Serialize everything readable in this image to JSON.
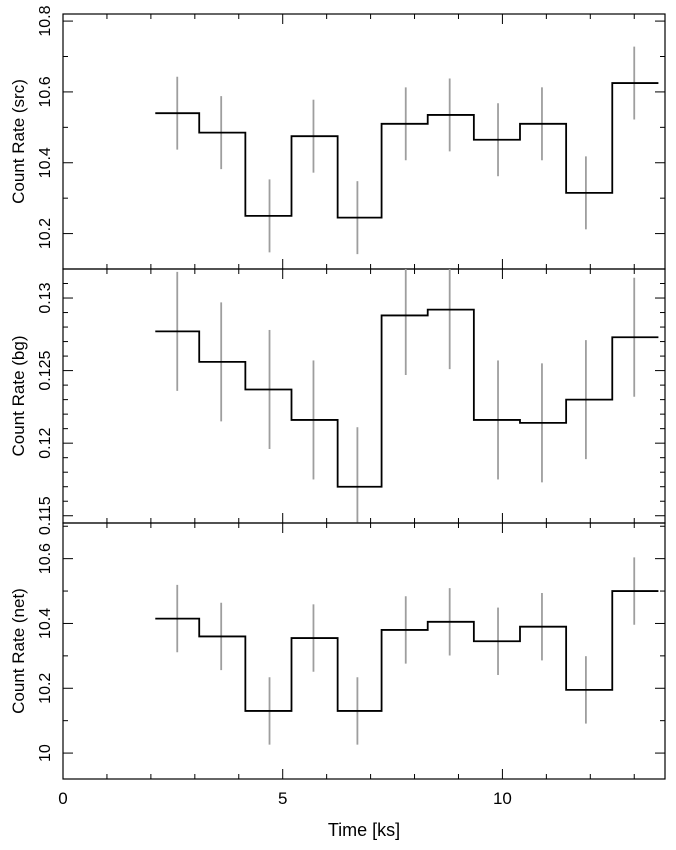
{
  "chart_data": [
    {
      "type": "line",
      "ylabel": "Count Rate (src)",
      "xlim": [
        0,
        13.7
      ],
      "ylim": [
        10.1,
        10.82
      ],
      "yticks": [
        10.2,
        10.4,
        10.6,
        10.8
      ],
      "yminor": [
        10.1,
        10.3,
        10.5,
        10.7
      ],
      "x": [
        2.6,
        3.6,
        4.7,
        5.7,
        6.7,
        7.8,
        8.8,
        9.9,
        10.9,
        11.9,
        13.0
      ],
      "y": [
        10.54,
        10.485,
        10.25,
        10.475,
        10.245,
        10.51,
        10.535,
        10.465,
        10.51,
        10.315,
        10.625
      ],
      "yerr": [
        0.103,
        0.103,
        0.103,
        0.103,
        0.103,
        0.103,
        0.103,
        0.103,
        0.103,
        0.103,
        0.103
      ],
      "bin_edges": [
        2.1,
        3.1,
        4.15,
        5.2,
        6.25,
        7.25,
        8.3,
        9.35,
        10.4,
        11.45,
        12.5,
        13.55
      ]
    },
    {
      "type": "line",
      "ylabel": "Count Rate (bg)",
      "xlim": [
        0,
        13.7
      ],
      "ylim": [
        0.1145,
        0.132
      ],
      "yticks": [
        0.115,
        0.12,
        0.125,
        0.13
      ],
      "ytick_labels": [
        "0.115",
        "0.12",
        "0.125",
        "0.13"
      ],
      "yminor": [
        0.116,
        0.117,
        0.118,
        0.119,
        0.121,
        0.122,
        0.123,
        0.124,
        0.126,
        0.127,
        0.128,
        0.129,
        0.131
      ],
      "x": [
        2.6,
        3.6,
        4.7,
        5.7,
        6.7,
        7.8,
        8.8,
        9.9,
        10.9,
        11.9,
        13.0
      ],
      "y": [
        0.1277,
        0.1256,
        0.1237,
        0.1216,
        0.117,
        0.1288,
        0.1292,
        0.1216,
        0.1214,
        0.123,
        0.1273
      ],
      "yerr": [
        0.0041,
        0.0041,
        0.0041,
        0.0041,
        0.0041,
        0.0041,
        0.0041,
        0.0041,
        0.0041,
        0.0041,
        0.0041
      ],
      "bin_edges": [
        2.1,
        3.1,
        4.15,
        5.2,
        6.25,
        7.25,
        8.3,
        9.35,
        10.4,
        11.45,
        12.5,
        13.55
      ]
    },
    {
      "type": "line",
      "ylabel": "Count Rate (net)",
      "xlabel": "Time [ks]",
      "xlim": [
        0,
        13.7
      ],
      "ylim": [
        9.92,
        10.71
      ],
      "yticks": [
        10.0,
        10.2,
        10.4,
        10.6
      ],
      "ytick_labels": [
        "10",
        "10.2",
        "10.4",
        "10.6"
      ],
      "yminor": [
        10.1,
        10.3,
        10.5,
        10.7
      ],
      "xticks": [
        0,
        5,
        10
      ],
      "xminor": [
        1,
        2,
        3,
        4,
        6,
        7,
        8,
        9,
        11,
        12,
        13
      ],
      "x": [
        2.6,
        3.6,
        4.7,
        5.7,
        6.7,
        7.8,
        8.8,
        9.9,
        10.9,
        11.9,
        13.0
      ],
      "y": [
        10.415,
        10.36,
        10.13,
        10.355,
        10.13,
        10.38,
        10.405,
        10.345,
        10.39,
        10.195,
        10.5
      ],
      "yerr": [
        0.104,
        0.104,
        0.104,
        0.104,
        0.104,
        0.104,
        0.104,
        0.104,
        0.104,
        0.104,
        0.104
      ],
      "bin_edges": [
        2.1,
        3.1,
        4.15,
        5.2,
        6.25,
        7.25,
        8.3,
        9.35,
        10.4,
        11.45,
        12.5,
        13.55
      ]
    }
  ],
  "colors": {
    "step": "#000000",
    "errorbar": "#9e9e9e",
    "axes": "#000000"
  }
}
